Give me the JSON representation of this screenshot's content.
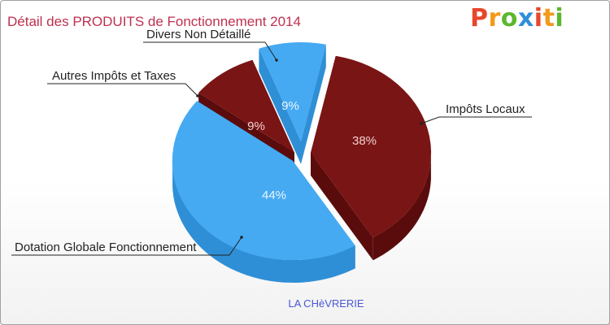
{
  "header": {
    "title": "Détail des PRODUITS de Fonctionnement 2014",
    "logo_letters": [
      "P",
      "r",
      "o",
      "x",
      "i",
      "t",
      "i"
    ],
    "logo_colors": [
      "#e8462a",
      "#f29a1b",
      "#5bb82e",
      "#2f8fd8",
      "#e8462a",
      "#f29a1b",
      "#5bb82e"
    ]
  },
  "caption": "LA CHèVRERIE",
  "chart_data": {
    "type": "pie",
    "title": "Détail des PRODUITS de Fonctionnement 2014",
    "slices": [
      {
        "label": "Impôts Locaux",
        "value": 38,
        "value_label": "38%",
        "color": "#7a1515",
        "side_color": "#5a0c0c",
        "label_color": "#f2d0d0"
      },
      {
        "label": "Dotation Globale Fonctionnement",
        "value": 44,
        "value_label": "44%",
        "color": "#45aaf2",
        "side_color": "#2f8fd6",
        "label_color": "#eaf6ff"
      },
      {
        "label": "Autres Impôts et Taxes",
        "value": 9,
        "value_label": "9%",
        "color": "#7a1515",
        "side_color": "#5a0c0c",
        "label_color": "#f2d0d0"
      },
      {
        "label": "Divers Non Détaillé",
        "value": 9,
        "value_label": "9%",
        "color": "#45aaf2",
        "side_color": "#2f8fd6",
        "label_color": "#eaf6ff"
      }
    ]
  }
}
